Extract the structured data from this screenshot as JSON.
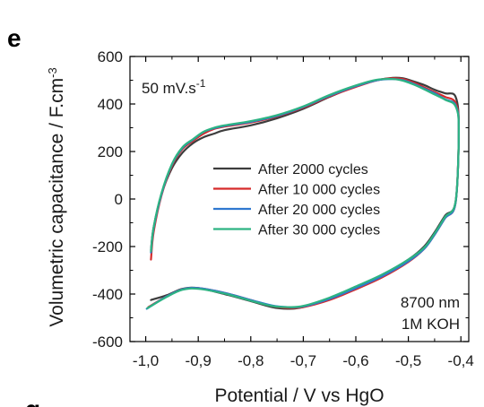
{
  "panel": {
    "letter": "e",
    "lower_cut_letter": "g"
  },
  "chart_data": {
    "type": "line",
    "xlabel": "Potential / V vs HgO",
    "ylabel_main": "Volumetric capacitance / F.cm",
    "ylabel_sup": "-3",
    "xlim": [
      -1.03,
      -0.385
    ],
    "ylim": [
      -600,
      600
    ],
    "x_ticks": [
      -1.0,
      -0.9,
      -0.8,
      -0.7,
      -0.6,
      -0.5,
      -0.4
    ],
    "x_tick_labels": [
      "-1,0",
      "-0,9",
      "-0,8",
      "-0,7",
      "-0,6",
      "-0,5",
      "-0,4"
    ],
    "y_ticks": [
      -600,
      -400,
      -200,
      0,
      200,
      400,
      600
    ],
    "y_tick_labels": [
      "-600",
      "-400",
      "-200",
      "0",
      "200",
      "400",
      "600"
    ],
    "grid": false,
    "legend_position": "center-right",
    "annotations": {
      "scan_rate_main": "50 mV.s",
      "scan_rate_sup": "-1",
      "thickness": "8700 nm",
      "electrolyte": "1M KOH"
    },
    "series": [
      {
        "name": "After 2000 cycles",
        "color": "#3d3d3d",
        "x": [
          -0.99,
          -0.985,
          -0.97,
          -0.95,
          -0.93,
          -0.91,
          -0.89,
          -0.87,
          -0.85,
          -0.8,
          -0.75,
          -0.7,
          -0.65,
          -0.6,
          -0.56,
          -0.53,
          -0.51,
          -0.49,
          -0.47,
          -0.45,
          -0.43,
          -0.41,
          -0.404,
          -0.41,
          -0.43,
          -0.45,
          -0.47,
          -0.5,
          -0.55,
          -0.6,
          -0.65,
          -0.7,
          -0.73,
          -0.76,
          -0.8,
          -0.85,
          -0.9,
          -0.93,
          -0.96,
          -0.99
        ],
        "y": [
          -215,
          -120,
          20,
          130,
          195,
          235,
          260,
          275,
          290,
          310,
          340,
          380,
          430,
          475,
          500,
          510,
          508,
          495,
          480,
          460,
          445,
          430,
          300,
          -10,
          -70,
          -140,
          -200,
          -255,
          -320,
          -370,
          -420,
          -455,
          -462,
          -455,
          -430,
          -400,
          -375,
          -378,
          -405,
          -425
        ]
      },
      {
        "name": "After 10 000 cycles",
        "color": "#d62a2a",
        "x": [
          -0.99,
          -0.985,
          -0.97,
          -0.95,
          -0.93,
          -0.91,
          -0.89,
          -0.87,
          -0.85,
          -0.8,
          -0.75,
          -0.7,
          -0.65,
          -0.6,
          -0.56,
          -0.53,
          -0.51,
          -0.49,
          -0.47,
          -0.45,
          -0.43,
          -0.41,
          -0.404,
          -0.41,
          -0.43,
          -0.45,
          -0.47,
          -0.5,
          -0.55,
          -0.6,
          -0.65,
          -0.7,
          -0.73,
          -0.76,
          -0.8,
          -0.85,
          -0.9,
          -0.93,
          -0.96,
          -0.995
        ],
        "y": [
          -255,
          -140,
          15,
          140,
          210,
          245,
          275,
          295,
          305,
          322,
          348,
          385,
          432,
          472,
          500,
          508,
          505,
          490,
          470,
          450,
          430,
          405,
          300,
          -15,
          -80,
          -150,
          -210,
          -265,
          -330,
          -380,
          -425,
          -455,
          -458,
          -450,
          -425,
          -395,
          -375,
          -380,
          -410,
          -455
        ]
      },
      {
        "name": "After 20 000 cycles",
        "color": "#2f78d0",
        "x": [
          -0.99,
          -0.985,
          -0.97,
          -0.95,
          -0.93,
          -0.91,
          -0.89,
          -0.87,
          -0.85,
          -0.8,
          -0.75,
          -0.7,
          -0.65,
          -0.6,
          -0.56,
          -0.53,
          -0.51,
          -0.49,
          -0.47,
          -0.45,
          -0.43,
          -0.41,
          -0.404,
          -0.41,
          -0.43,
          -0.45,
          -0.47,
          -0.5,
          -0.55,
          -0.6,
          -0.65,
          -0.7,
          -0.73,
          -0.76,
          -0.8,
          -0.85,
          -0.9,
          -0.93,
          -0.96,
          -0.998
        ],
        "y": [
          -225,
          -125,
          20,
          145,
          215,
          250,
          282,
          298,
          308,
          325,
          350,
          388,
          435,
          475,
          500,
          505,
          500,
          485,
          465,
          445,
          420,
          395,
          295,
          -15,
          -80,
          -150,
          -210,
          -262,
          -325,
          -375,
          -420,
          -452,
          -455,
          -448,
          -425,
          -395,
          -375,
          -380,
          -410,
          -462
        ]
      },
      {
        "name": "After 30 000 cycles",
        "color": "#2db383",
        "x": [
          -0.99,
          -0.985,
          -0.97,
          -0.95,
          -0.93,
          -0.91,
          -0.89,
          -0.87,
          -0.85,
          -0.8,
          -0.75,
          -0.7,
          -0.65,
          -0.6,
          -0.56,
          -0.53,
          -0.51,
          -0.49,
          -0.47,
          -0.45,
          -0.43,
          -0.41,
          -0.404,
          -0.41,
          -0.43,
          -0.45,
          -0.47,
          -0.5,
          -0.55,
          -0.6,
          -0.65,
          -0.7,
          -0.73,
          -0.76,
          -0.8,
          -0.85,
          -0.9,
          -0.93,
          -0.96,
          -0.997
        ],
        "y": [
          -220,
          -120,
          25,
          148,
          218,
          252,
          283,
          300,
          310,
          328,
          353,
          390,
          438,
          478,
          502,
          505,
          498,
          482,
          462,
          440,
          418,
          390,
          290,
          -10,
          -75,
          -145,
          -205,
          -255,
          -318,
          -368,
          -415,
          -450,
          -455,
          -450,
          -428,
          -398,
          -378,
          -382,
          -412,
          -460
        ]
      }
    ]
  }
}
